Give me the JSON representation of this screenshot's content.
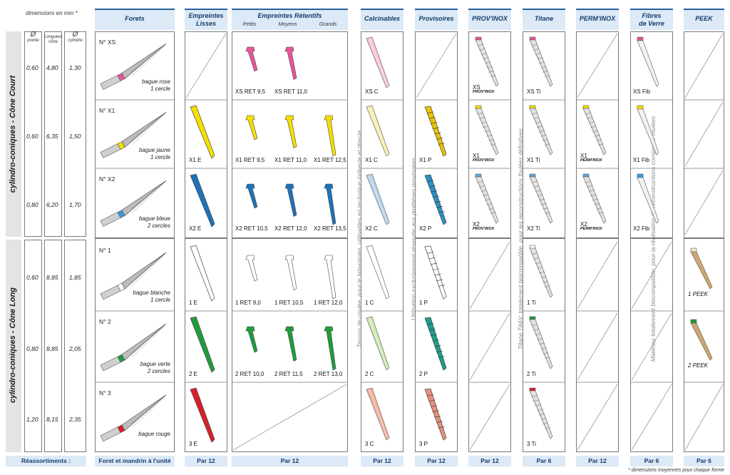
{
  "dims_title": "dimensions en mm *",
  "dim_headers": {
    "phi": "Ø",
    "pointe": "pointe",
    "longueur": "Longueur cône",
    "cylindre": "cylindre"
  },
  "groups": {
    "court": "cylindro-coniques - Cône Court",
    "long": "cylindro-coniques - Cône Long"
  },
  "dims": [
    {
      "pointe": "0,60",
      "longueur": "4,80",
      "cylindre": "1,30"
    },
    {
      "pointe": "0,60",
      "longueur": "6,35",
      "cylindre": "1,50"
    },
    {
      "pointe": "0,80",
      "longueur": "6,20",
      "cylindre": "1,70"
    },
    {
      "pointe": "0,60",
      "longueur": "8,85",
      "cylindre": "1,85"
    },
    {
      "pointe": "0,80",
      "longueur": "8,85",
      "cylindre": "2,05"
    },
    {
      "pointe": "1,20",
      "longueur": "8,15",
      "cylindre": "2,35"
    }
  ],
  "headers": {
    "forets": "Forets",
    "lisses": [
      "Empreintes",
      "Lisses"
    ],
    "retentifs": "Empreintes Rétentifs",
    "retentifs_sub": [
      "Petits",
      "Moyens",
      "Grands"
    ],
    "calcinables": "Calcinables",
    "provisoires": "Provisoires",
    "provinox": "PROV'INOX",
    "titane": "Titane",
    "perminox": "PERM'INOX",
    "fibres": [
      "Fibres",
      "de Verre"
    ],
    "peek": "PEEK"
  },
  "drills": [
    {
      "no": "N° XS",
      "bague": "bague rose",
      "cercles": "1 cercle",
      "color": "#e8559c"
    },
    {
      "no": "N° X1",
      "bague": "bague jaune",
      "cercles": "1 cercle",
      "color": "#f4e000"
    },
    {
      "no": "N° X2",
      "bague": "bague bleue",
      "cercles": "2 cercles",
      "color": "#3a9ad9"
    },
    {
      "no": "N° 1",
      "bague": "bague blanche",
      "cercles": "1 cercle",
      "color": "#ffffff"
    },
    {
      "no": "N° 2",
      "bague": "bague verte",
      "cercles": "2 cercles",
      "color": "#1f9c3c"
    },
    {
      "no": "N° 3",
      "bague": "bague rouge",
      "cercles": "",
      "color": "#d8202a"
    }
  ],
  "lisses": [
    "",
    "X1 E",
    "X2 E",
    "1 E",
    "2 E",
    "3 E"
  ],
  "retentifs": [
    [
      "XS RET 9,5",
      "XS RET 11,0",
      ""
    ],
    [
      "X1 RET 9,5",
      "X1 RET 11,0",
      "X1 RET 12,5"
    ],
    [
      "X2 RET 10,5",
      "X2 RET 12,0",
      "X2 RET 13,5"
    ],
    [
      "1 RET 9,0",
      "1 RET 10,5",
      "1 RET 12,0"
    ],
    [
      "2 RET 10,0",
      "2 RET 11,5",
      "2 RET 13,0"
    ],
    [
      "",
      "",
      ""
    ]
  ],
  "calcinables": [
    "XS C",
    "X1 C",
    "X2 C",
    "1 C",
    "2 C",
    "3 C"
  ],
  "provisoires": [
    "",
    "X1 P",
    "X2 P",
    "1 P",
    "2 P",
    "3 P"
  ],
  "provinox": [
    "XS",
    "X1",
    "X2",
    "",
    "",
    ""
  ],
  "provinox_brand": "PROV'INOX",
  "titane": [
    "XS Ti",
    "X1 Ti",
    "X2 Ti",
    "1 Ti",
    "2 Ti",
    "3 Ti"
  ],
  "perminox": [
    "",
    "X1",
    "X2",
    "",
    "",
    ""
  ],
  "perminox_brand": "PERM'INOX",
  "fibres": [
    "XS Fib",
    "X1 Fib",
    "X2 Fib",
    "",
    "",
    ""
  ],
  "peek": [
    "",
    "",
    "",
    "1 PEEK",
    "2 PEEK",
    ""
  ],
  "notes": {
    "calcinables": "Tenons de coulée, pour le laboratoire, utilisables en technique indirecte et directe",
    "provisoires": "Utilisation exclusivement réservée aux prothèses provisoires",
    "titane": "Titane TA6V, totalement biocompatible, pour les reconstructions foulées définitives",
    "fibres": "Matériau totalement biocompatible, pour la réalisation de reconstructions composite foulées"
  },
  "footer": {
    "reassortiments": "Réassortiments :",
    "forets": "Foret et mandrin à l'unité",
    "lisses": "Par 12",
    "retentifs": "Par 12",
    "calcinables": "Par 12",
    "provisoires": "Par 12",
    "provinox": "Par 12",
    "titane": "Par 6",
    "perminox": "Par 12",
    "fibres": "Par 6",
    "peek": "Par 6"
  },
  "footnote": "* dimensions moyennes pour chaque forme",
  "colors": {
    "pink": "#e8559c",
    "yellow": "#f4e000",
    "blue": "#1e72b8",
    "white": "#ffffff",
    "green": "#1f9c3c",
    "red": "#d8202a",
    "calc_pink": "#f7c6d9",
    "calc_yellow": "#f6eeb0",
    "calc_blue": "#b9d4ef",
    "calc_green": "#cfe8b4",
    "calc_red": "#f4b39c",
    "prov_yellow": "#e8c500",
    "prov_blue": "#2a8ec4",
    "prov_teal": "#1e9c8c",
    "prov_salmon": "#e8907a",
    "peek": "#c9a777"
  }
}
